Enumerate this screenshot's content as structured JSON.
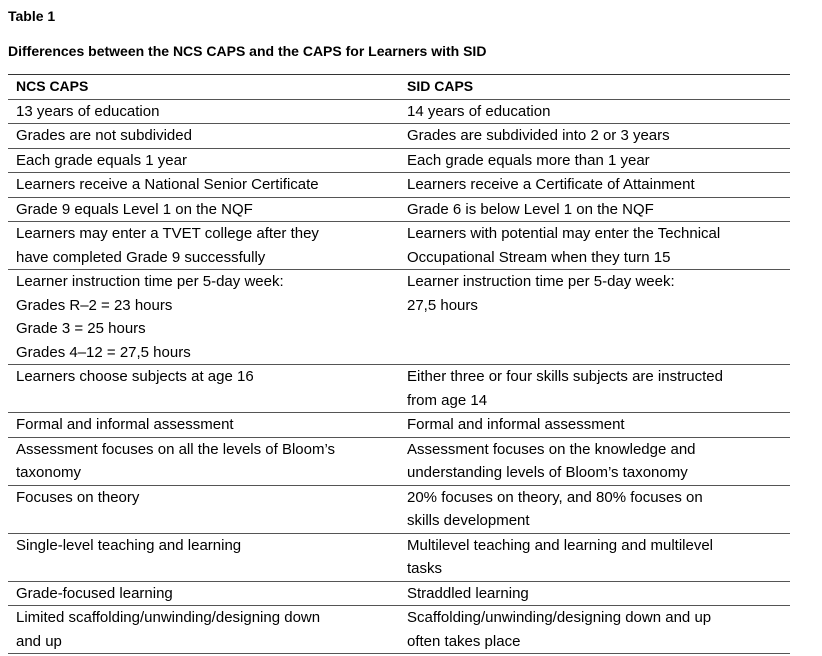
{
  "header": {
    "label": "Table 1",
    "title": "Differences between the NCS CAPS and the CAPS for Learners with SID"
  },
  "table": {
    "columns": [
      "NCS CAPS",
      "SID CAPS"
    ],
    "rows": [
      [
        [
          "13 years of education"
        ],
        [
          "14 years of education"
        ]
      ],
      [
        [
          "Grades are not subdivided"
        ],
        [
          "Grades are subdivided into 2 or 3 years"
        ]
      ],
      [
        [
          "Each grade equals 1 year"
        ],
        [
          "Each grade equals more than 1 year"
        ]
      ],
      [
        [
          "Learners receive a National Senior Certificate"
        ],
        [
          "Learners receive a Certificate of Attainment"
        ]
      ],
      [
        [
          "Grade 9 equals Level 1 on the NQF"
        ],
        [
          "Grade 6 is below Level 1 on the NQF"
        ]
      ],
      [
        [
          "Learners may enter a TVET college after they",
          "have completed Grade 9 successfully"
        ],
        [
          "Learners with potential may enter the Technical",
          "Occupational Stream when they turn 15"
        ]
      ],
      [
        [
          "Learner instruction time per 5-day week:",
          "Grades R–2 = 23 hours",
          "Grade 3 = 25 hours",
          "Grades 4–12 = 27,5 hours"
        ],
        [
          "Learner instruction time per 5-day week:",
          "27,5 hours"
        ]
      ],
      [
        [
          "Learners choose subjects at age 16"
        ],
        [
          "Either three or four skills subjects are instructed",
          "from age 14"
        ]
      ],
      [
        [
          "Formal and informal assessment"
        ],
        [
          "Formal and informal assessment"
        ]
      ],
      [
        [
          "Assessment focuses on all the levels of Bloom’s",
          "taxonomy"
        ],
        [
          "Assessment focuses on the knowledge and",
          "understanding levels of Bloom’s taxonomy"
        ]
      ],
      [
        [
          "Focuses on theory"
        ],
        [
          "20% focuses on theory, and 80% focuses on",
          "skills development"
        ]
      ],
      [
        [
          "Single-level teaching and learning"
        ],
        [
          "Multilevel teaching and learning and multilevel",
          "tasks"
        ]
      ],
      [
        [
          "Grade-focused learning"
        ],
        [
          "Straddled learning"
        ]
      ],
      [
        [
          "Limited scaffolding/unwinding/designing down",
          "and up"
        ],
        [
          "Scaffolding/unwinding/designing down and up",
          "often takes place"
        ]
      ]
    ]
  }
}
